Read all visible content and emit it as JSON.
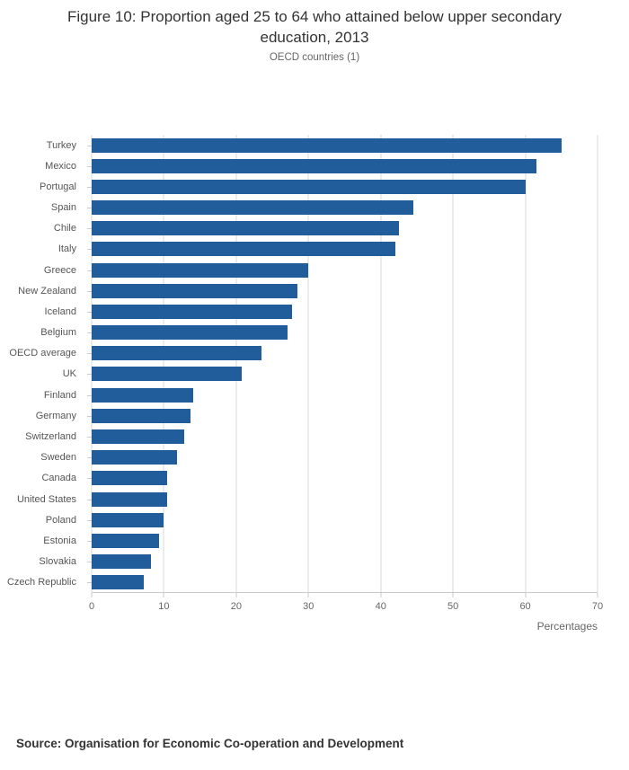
{
  "chart_data": {
    "type": "bar",
    "orientation": "horizontal",
    "title": "Figure 10: Proportion aged 25 to 64 who attained below upper secondary education, 2013",
    "subtitle": "OECD countries (1)",
    "categories": [
      "Turkey",
      "Mexico",
      "Portugal",
      "Spain",
      "Chile",
      "Italy",
      "Greece",
      "New Zealand",
      "Iceland",
      "Belgium",
      "OECD average",
      "UK",
      "Finland",
      "Germany",
      "Switzerland",
      "Sweden",
      "Canada",
      "United States",
      "Poland",
      "Estonia",
      "Slovakia",
      "Czech Republic"
    ],
    "values": [
      65,
      61.5,
      60,
      44.5,
      42.5,
      42,
      30,
      28.5,
      27.7,
      27.1,
      23.5,
      20.8,
      14.1,
      13.7,
      12.8,
      11.8,
      10.5,
      10.4,
      9.9,
      9.3,
      8.2,
      7.2
    ],
    "xlabel": "Percentages",
    "ylabel": "",
    "xlim": [
      0,
      70
    ],
    "xticks": [
      0,
      10,
      20,
      30,
      40,
      50,
      60,
      70
    ],
    "bar_color": "#215d9b",
    "grid": true,
    "legend": "none"
  },
  "source": "Source: Organisation for Economic Co-operation and Development"
}
